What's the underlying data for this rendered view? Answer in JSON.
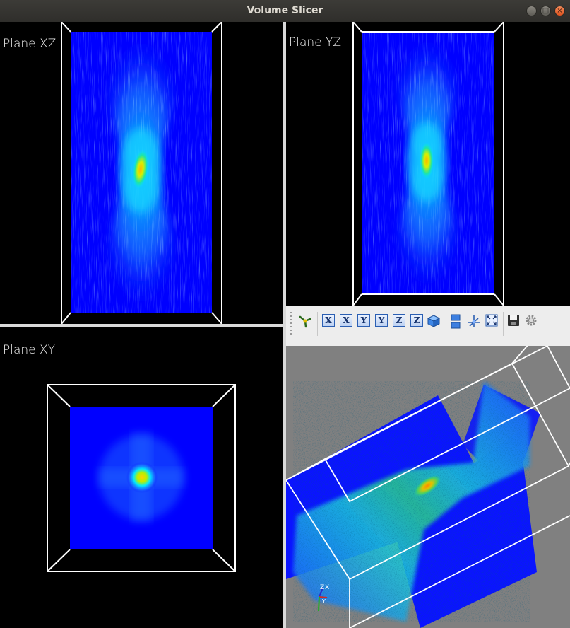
{
  "window": {
    "title": "Volume Slicer",
    "buttons": {
      "minimize": "–",
      "maximize": "□",
      "close": "×"
    }
  },
  "views": {
    "xz": {
      "label": "Plane XZ"
    },
    "yz": {
      "label": "Plane YZ"
    },
    "xy": {
      "label": "Plane XY"
    },
    "scene3d": {
      "background": "#808080",
      "axes_labels": {
        "z": "Z",
        "x": "X",
        "y": "Y"
      }
    }
  },
  "toolbar": {
    "buttons": [
      {
        "id": "isometric-view",
        "icon": "three-axis-icon"
      },
      {
        "id": "view-x-plus",
        "text": "X"
      },
      {
        "id": "view-x-minus",
        "text": "X"
      },
      {
        "id": "view-y-plus",
        "text": "Y"
      },
      {
        "id": "view-y-minus",
        "text": "Y"
      },
      {
        "id": "view-z-plus",
        "text": "Z"
      },
      {
        "id": "view-z-minus",
        "text": "Z"
      },
      {
        "id": "view-iso-cube",
        "icon": "cube-icon"
      },
      {
        "id": "parallel-projection",
        "icon": "parallel-projection-icon"
      },
      {
        "id": "show-axes",
        "icon": "axes-icon"
      },
      {
        "id": "full-screen",
        "icon": "fullscreen-icon"
      },
      {
        "id": "save",
        "icon": "save-icon"
      },
      {
        "id": "configure",
        "icon": "gear-icon"
      }
    ]
  },
  "colors": {
    "volume_low": "#0000ff",
    "volume_mid": "#00e5ff",
    "volume_high": "#ffd400",
    "frame": "#ffffff",
    "toolbar_bg": "#ededed"
  }
}
